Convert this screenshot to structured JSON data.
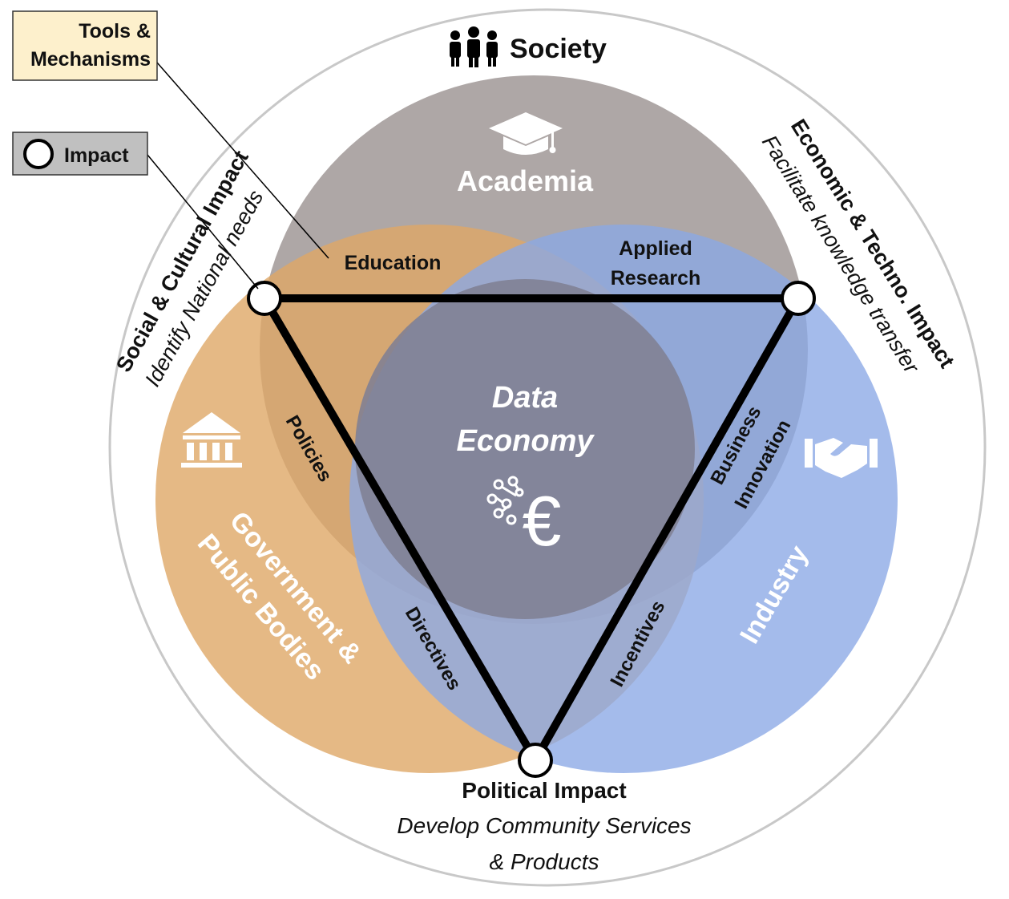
{
  "legend": {
    "tools_line1": "Tools &",
    "tools_line2": "Mechanisms",
    "impact": "Impact"
  },
  "outer": {
    "society": "Society"
  },
  "circles": {
    "academia": "Academia",
    "government_line1": "Government &",
    "government_line2": "Public Bodies",
    "industry": "Industry"
  },
  "center": {
    "line1": "Data",
    "line2": "Economy",
    "icon": "data-euro-icon"
  },
  "tools": {
    "education": "Education",
    "applied_line1": "Applied",
    "applied_line2": "Research",
    "policies": "Policies",
    "business_line1": "Business",
    "business_line2": "Innovation",
    "directives": "Directives",
    "incentives": "Incentives"
  },
  "impacts": {
    "social_title": "Social & Cultural Impact",
    "social_sub": "Identify National needs",
    "economic_title": "Economic & Techno. Impact",
    "economic_sub": "Facilitate knowledge transfer",
    "political_title": "Political Impact",
    "political_sub_line1": "Develop Community Services",
    "political_sub_line2": "& Products"
  },
  "colors": {
    "academia": "#a59d9c",
    "government": "#dfa866",
    "industry": "#8aa8e6",
    "center": "#7f7f93",
    "outer_ring": "#c8c8c8",
    "tools_box": "#fdf0cc",
    "impact_box": "#c0c0c0",
    "triangle": "#000000"
  }
}
